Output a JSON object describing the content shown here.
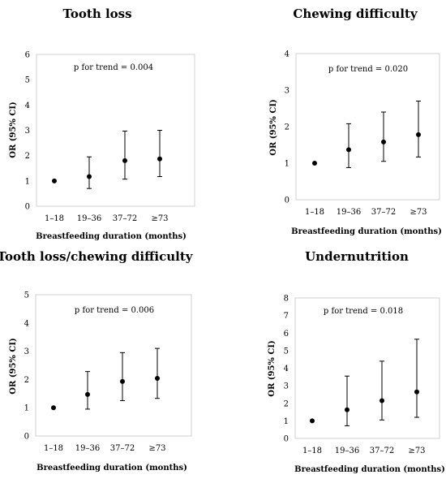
{
  "chart_data": [
    {
      "type": "scatter",
      "title": "Tooth loss",
      "xlabel": "Breastfeeding duration (months)",
      "ylabel": "OR (95% CI)",
      "annotation": "p for trend = 0.004",
      "categories": [
        "1–18",
        "19–36",
        "37–72",
        "≥73"
      ],
      "values": [
        1.0,
        1.17,
        1.8,
        1.87
      ],
      "lower": [
        null,
        0.7,
        1.07,
        1.17
      ],
      "upper": [
        null,
        1.95,
        2.97,
        3.0
      ],
      "ylim": [
        0,
        6
      ],
      "yticks": [
        0,
        1,
        2,
        3,
        4,
        5,
        6
      ],
      "grid": false,
      "legend": "none"
    },
    {
      "type": "scatter",
      "title": "Chewing difficulty",
      "xlabel": "Breastfeeding duration (months)",
      "ylabel": "OR (95% CI)",
      "annotation": "p for trend = 0.020",
      "categories": [
        "1–18",
        "19–36",
        "37–72",
        "≥73"
      ],
      "values": [
        1.0,
        1.37,
        1.58,
        1.78
      ],
      "lower": [
        null,
        0.88,
        1.05,
        1.17
      ],
      "upper": [
        null,
        2.08,
        2.4,
        2.7
      ],
      "ylim": [
        0,
        4
      ],
      "yticks": [
        0,
        1,
        2,
        3,
        4
      ],
      "grid": false,
      "legend": "none"
    },
    {
      "type": "scatter",
      "title": "Tooth loss/chewing difficulty",
      "xlabel": "Breastfeeding duration (months)",
      "ylabel": "OR (95% CI)",
      "annotation": "p for trend = 0.006",
      "categories": [
        "1–18",
        "19–36",
        "37–72",
        "≥73"
      ],
      "values": [
        1.0,
        1.47,
        1.93,
        2.04
      ],
      "lower": [
        null,
        0.95,
        1.25,
        1.33
      ],
      "upper": [
        null,
        2.28,
        2.95,
        3.1
      ],
      "ylim": [
        0,
        5
      ],
      "yticks": [
        0,
        1,
        2,
        3,
        4,
        5
      ],
      "grid": false,
      "legend": "none"
    },
    {
      "type": "scatter",
      "title": "Undernutrition",
      "xlabel": "Breastfeeding duration (months)",
      "ylabel": "OR (95% CI)",
      "annotation": "p for trend = 0.018",
      "categories": [
        "1–18",
        "19–36",
        "37–72",
        "≥73"
      ],
      "values": [
        1.0,
        1.63,
        2.15,
        2.65
      ],
      "lower": [
        null,
        0.72,
        1.05,
        1.2
      ],
      "upper": [
        null,
        3.55,
        4.4,
        5.65
      ],
      "ylim": [
        0,
        8
      ],
      "yticks": [
        0,
        1,
        2,
        3,
        4,
        5,
        6,
        7,
        8
      ],
      "grid": false,
      "legend": "none"
    }
  ]
}
